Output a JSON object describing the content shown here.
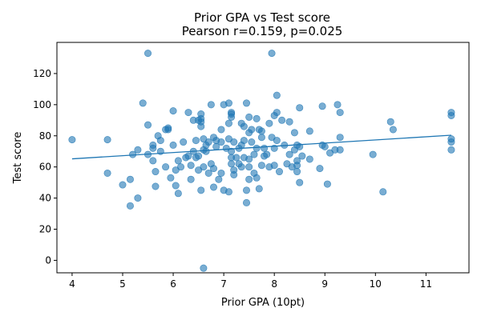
{
  "chart_data": {
    "type": "scatter",
    "title": "Prior GPA vs Test score",
    "subtitle": "Pearson r=0.159, p=0.025",
    "xlabel": "Prior GPA (10pt)",
    "ylabel": "Test score",
    "xlim": [
      3.7,
      11.85
    ],
    "ylim": [
      -8,
      140
    ],
    "xticks": [
      4,
      5,
      6,
      7,
      8,
      9,
      10,
      11
    ],
    "yticks": [
      0,
      20,
      40,
      60,
      80,
      100,
      120
    ],
    "grid": false,
    "legend": "none",
    "point_color": "#1f77b4",
    "line_color": "#1f77b4",
    "trendline": {
      "x": [
        4.0,
        11.5
      ],
      "y": [
        65.2,
        80.4
      ]
    },
    "points": [
      [
        4.0,
        77.5
      ],
      [
        4.7,
        77.5
      ],
      [
        4.7,
        56
      ],
      [
        5.0,
        48.5
      ],
      [
        5.15,
        35
      ],
      [
        5.15,
        52
      ],
      [
        5.2,
        68
      ],
      [
        5.3,
        71
      ],
      [
        5.3,
        40
      ],
      [
        5.4,
        101
      ],
      [
        5.5,
        133
      ],
      [
        5.5,
        87
      ],
      [
        5.5,
        68
      ],
      [
        5.6,
        74
      ],
      [
        5.6,
        72
      ],
      [
        5.6,
        64
      ],
      [
        5.65,
        57
      ],
      [
        5.65,
        47.5
      ],
      [
        5.7,
        80
      ],
      [
        5.75,
        70
      ],
      [
        5.75,
        77
      ],
      [
        5.85,
        84
      ],
      [
        5.85,
        60
      ],
      [
        5.9,
        85
      ],
      [
        5.9,
        84
      ],
      [
        5.95,
        53
      ],
      [
        6.0,
        74
      ],
      [
        6.0,
        96
      ],
      [
        6.05,
        58
      ],
      [
        6.05,
        48
      ],
      [
        6.1,
        64
      ],
      [
        6.1,
        43
      ],
      [
        6.15,
        60
      ],
      [
        6.2,
        76
      ],
      [
        6.25,
        66
      ],
      [
        6.3,
        95
      ],
      [
        6.3,
        67
      ],
      [
        6.35,
        61
      ],
      [
        6.35,
        52
      ],
      [
        6.4,
        90
      ],
      [
        6.4,
        70
      ],
      [
        6.45,
        77
      ],
      [
        6.45,
        66
      ],
      [
        6.5,
        67
      ],
      [
        6.5,
        58
      ],
      [
        6.5,
        90
      ],
      [
        6.55,
        91
      ],
      [
        6.55,
        89
      ],
      [
        6.55,
        86
      ],
      [
        6.55,
        94
      ],
      [
        6.55,
        45
      ],
      [
        6.6,
        60
      ],
      [
        6.6,
        71
      ],
      [
        6.6,
        78
      ],
      [
        6.6,
        -5
      ],
      [
        6.65,
        74
      ],
      [
        6.65,
        70
      ],
      [
        6.7,
        76
      ],
      [
        6.7,
        56
      ],
      [
        6.75,
        100
      ],
      [
        6.75,
        62
      ],
      [
        6.8,
        59
      ],
      [
        6.8,
        79
      ],
      [
        6.8,
        47
      ],
      [
        6.85,
        73
      ],
      [
        6.85,
        77
      ],
      [
        6.9,
        52
      ],
      [
        6.95,
        76
      ],
      [
        6.95,
        56
      ],
      [
        6.95,
        84
      ],
      [
        7.0,
        100
      ],
      [
        7.0,
        45
      ],
      [
        7.05,
        72
      ],
      [
        7.1,
        101
      ],
      [
        7.1,
        88
      ],
      [
        7.1,
        78
      ],
      [
        7.1,
        44
      ],
      [
        7.15,
        94
      ],
      [
        7.15,
        95
      ],
      [
        7.15,
        92
      ],
      [
        7.15,
        70
      ],
      [
        7.15,
        66
      ],
      [
        7.15,
        62
      ],
      [
        7.2,
        58
      ],
      [
        7.2,
        55
      ],
      [
        7.2,
        76
      ],
      [
        7.25,
        66
      ],
      [
        7.3,
        72
      ],
      [
        7.3,
        62
      ],
      [
        7.35,
        88
      ],
      [
        7.35,
        74
      ],
      [
        7.35,
        60
      ],
      [
        7.4,
        77
      ],
      [
        7.4,
        86
      ],
      [
        7.4,
        66
      ],
      [
        7.45,
        101
      ],
      [
        7.45,
        45
      ],
      [
        7.45,
        37
      ],
      [
        7.5,
        92
      ],
      [
        7.5,
        82
      ],
      [
        7.5,
        65
      ],
      [
        7.5,
        60
      ],
      [
        7.5,
        52
      ],
      [
        7.55,
        84
      ],
      [
        7.55,
        76
      ],
      [
        7.6,
        68
      ],
      [
        7.6,
        56
      ],
      [
        7.65,
        91
      ],
      [
        7.65,
        72
      ],
      [
        7.65,
        53
      ],
      [
        7.7,
        84
      ],
      [
        7.7,
        46
      ],
      [
        7.75,
        79
      ],
      [
        7.75,
        61
      ],
      [
        7.75,
        83
      ],
      [
        7.8,
        72
      ],
      [
        7.8,
        67
      ],
      [
        7.85,
        68
      ],
      [
        7.9,
        88
      ],
      [
        7.9,
        60
      ],
      [
        7.95,
        133
      ],
      [
        7.95,
        79
      ],
      [
        8.0,
        61
      ],
      [
        8.0,
        72
      ],
      [
        8.0,
        93
      ],
      [
        8.05,
        95
      ],
      [
        8.05,
        106
      ],
      [
        8.05,
        77
      ],
      [
        8.1,
        57
      ],
      [
        8.15,
        90
      ],
      [
        8.2,
        74
      ],
      [
        8.25,
        62
      ],
      [
        8.3,
        68
      ],
      [
        8.3,
        89
      ],
      [
        8.35,
        60
      ],
      [
        8.4,
        82
      ],
      [
        8.4,
        71
      ],
      [
        8.45,
        74
      ],
      [
        8.45,
        57
      ],
      [
        8.45,
        64
      ],
      [
        8.45,
        61
      ],
      [
        8.5,
        98
      ],
      [
        8.5,
        50
      ],
      [
        8.5,
        73
      ],
      [
        8.55,
        67
      ],
      [
        8.7,
        83
      ],
      [
        8.7,
        65
      ],
      [
        8.9,
        59
      ],
      [
        8.95,
        99
      ],
      [
        8.95,
        74
      ],
      [
        9.0,
        73
      ],
      [
        9.05,
        49
      ],
      [
        9.1,
        69
      ],
      [
        9.2,
        71
      ],
      [
        9.25,
        100
      ],
      [
        9.3,
        71
      ],
      [
        9.3,
        79
      ],
      [
        9.3,
        95
      ],
      [
        9.95,
        68
      ],
      [
        10.15,
        44
      ],
      [
        10.3,
        89
      ],
      [
        10.35,
        84
      ],
      [
        11.5,
        95
      ],
      [
        11.5,
        93
      ],
      [
        11.5,
        78
      ],
      [
        11.5,
        76
      ],
      [
        11.5,
        71
      ]
    ]
  }
}
